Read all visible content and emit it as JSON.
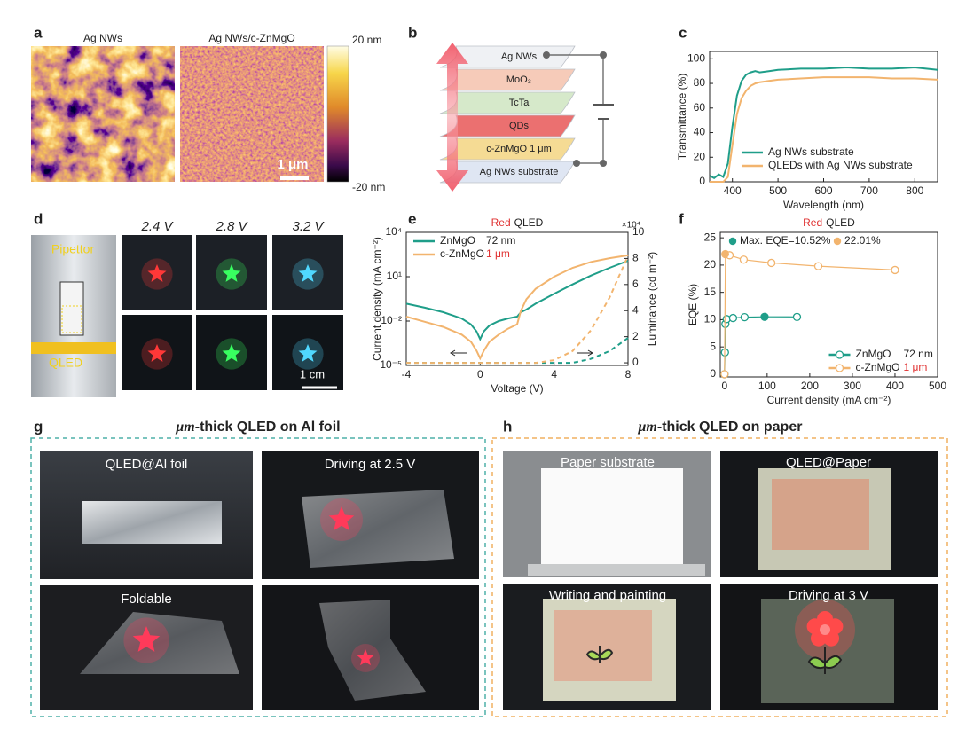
{
  "panels": {
    "a": {
      "label": "a",
      "titles": [
        "Ag NWs",
        "Ag NWs/c-ZnMgO"
      ],
      "colorbar": [
        "20 nm",
        "-20 nm"
      ],
      "scale_bar": "1 μm"
    },
    "b": {
      "label": "b",
      "layers": [
        "Ag NWs",
        "MoO₃",
        "TcTa",
        "QDs",
        "c-ZnMgO 1 μm",
        "Ag NWs substrate"
      ]
    },
    "c": {
      "label": "c"
    },
    "d": {
      "label": "d",
      "voltages": [
        "2.4 V",
        "2.8 V",
        "3.2 V"
      ],
      "pipettor": "Pipettor",
      "device": "QLED",
      "scale_bar": "1 cm"
    },
    "e": {
      "label": "e"
    },
    "f": {
      "label": "f"
    },
    "g": {
      "label": "g",
      "title_em": "μm",
      "title": "-thick QLED on Al foil",
      "captions": [
        "QLED@Al foil",
        "Driving at 2.5 V",
        "Foldable"
      ]
    },
    "h": {
      "label": "h",
      "title_em": "μm",
      "title": "-thick QLED on paper",
      "captions": [
        "Paper substrate",
        "QLED@Paper",
        "Writing and painting",
        "Driving at 3 V"
      ]
    }
  },
  "chart_data": [
    {
      "type": "line",
      "xlabel": "Wavelength (nm)",
      "ylabel": "Transmittance (%)",
      "x": [
        350,
        360,
        370,
        380,
        390,
        400,
        410,
        420,
        430,
        440,
        450,
        460,
        480,
        500,
        550,
        600,
        650,
        700,
        750,
        800,
        850
      ],
      "xlim": [
        350,
        850
      ],
      "xticks": [
        400,
        500,
        600,
        700,
        800
      ],
      "ylim": [
        0,
        106
      ],
      "yticks": [
        0,
        20,
        40,
        60,
        80,
        100
      ],
      "legend": "lower right",
      "series": [
        {
          "name": "Ag NWs substrate",
          "color": "#1f9e89",
          "values": [
            5,
            3,
            6,
            4,
            15,
            45,
            70,
            82,
            87,
            89,
            90,
            89,
            90,
            91,
            92,
            92,
            93,
            92,
            92,
            93,
            91
          ]
        },
        {
          "name": "QLEDs with Ag NWs substrate",
          "color": "#f2b46e",
          "values": [
            0,
            0,
            0,
            0,
            4,
            30,
            55,
            68,
            74,
            78,
            80,
            81,
            82,
            83,
            84,
            85,
            85,
            85,
            84,
            84,
            83
          ]
        }
      ]
    },
    {
      "type": "line",
      "title_prefix": "Red",
      "title_prefix_color": "#e03030",
      "title": "QLED",
      "xlabel": "Voltage (V)",
      "ylabel": "Current density (mA cm⁻²)",
      "y2label": "Luminance (cd m⁻²)",
      "y2_multiplier": "×10⁴",
      "x": [
        -4,
        -3,
        -2,
        -1,
        -0.5,
        -0.2,
        0,
        0.2,
        0.5,
        1,
        1.5,
        2,
        2.2,
        2.5,
        3,
        4,
        5,
        6,
        7,
        8
      ],
      "xlim": [
        -4,
        8
      ],
      "xticks": [
        -4,
        0,
        4,
        8
      ],
      "ylog": true,
      "ylim": [
        1e-05,
        10000
      ],
      "yticks": [
        {
          "value": 1e-05,
          "label": "10⁻⁵"
        },
        {
          "value": 0.01,
          "label": "10⁻²"
        },
        {
          "value": 10,
          "label": "10¹"
        },
        {
          "value": 10000,
          "label": "10⁴"
        }
      ],
      "y2lim": [
        -0.2,
        10
      ],
      "y2ticks": [
        0,
        2,
        4,
        6,
        8,
        10
      ],
      "legend": "upper left",
      "series": [
        {
          "name": "ZnMgO",
          "note": "72 nm",
          "color": "#1f9e89",
          "values": [
            0.15,
            0.08,
            0.04,
            0.015,
            0.006,
            0.002,
            0.0006,
            0.002,
            0.005,
            0.01,
            0.015,
            0.02,
            0.04,
            0.06,
            0.15,
            0.7,
            3,
            12,
            40,
            120
          ]
        },
        {
          "name": "c-ZnMgO",
          "note": "1 μm",
          "note_color": "#e03030",
          "color": "#f2b46e",
          "values": [
            0.02,
            0.009,
            0.004,
            0.0012,
            0.0004,
            0.0001,
            3e-05,
            0.0001,
            0.0004,
            0.0012,
            0.003,
            0.006,
            0.05,
            0.3,
            1.5,
            10,
            40,
            100,
            180,
            280
          ]
        },
        {
          "color": "#1f9e89",
          "axis": "y2",
          "dashed": true,
          "values": [
            0,
            0,
            0,
            0,
            0,
            0,
            0,
            0,
            0,
            0,
            0,
            0,
            0,
            0,
            0,
            0,
            0,
            0.3,
            0.9,
            1.9
          ]
        },
        {
          "color": "#f2b46e",
          "axis": "y2",
          "dashed": true,
          "values": [
            0,
            0,
            0,
            0,
            0,
            0,
            0,
            0,
            0,
            0,
            0,
            0,
            0,
            0,
            0,
            0.2,
            0.9,
            2.5,
            5,
            8.2
          ]
        }
      ]
    },
    {
      "type": "line",
      "markers": "open",
      "title_prefix": "Red",
      "title_prefix_color": "#e03030",
      "title": "QLED",
      "xlabel": "Current density (mA cm⁻²)",
      "ylabel": "EQE (%)",
      "xlim": [
        -10,
        500
      ],
      "xticks": [
        0,
        100,
        200,
        300,
        400,
        500
      ],
      "ylim": [
        -0.5,
        26
      ],
      "yticks": [
        0,
        5,
        10,
        15,
        20,
        25
      ],
      "legend": "lower right",
      "series": [
        {
          "name": "ZnMgO",
          "note": "72 nm",
          "color": "#1f9e89",
          "x": [
            0,
            1,
            2,
            5,
            20,
            47,
            94,
            170
          ],
          "values": [
            0,
            4,
            9.2,
            10.1,
            10.3,
            10.45,
            10.52,
            10.5
          ]
        },
        {
          "name": "c-ZnMgO",
          "note": "1 μm",
          "note_color": "#e03030",
          "color": "#f2b46e",
          "x": [
            0,
            2,
            12,
            45,
            110,
            220,
            400
          ],
          "values": [
            0,
            22.01,
            21.8,
            21.0,
            20.4,
            19.8,
            19.1
          ]
        }
      ],
      "highlights": [
        {
          "label": "Max. EQE=10.52%",
          "color": "#1f9e89",
          "x": 94,
          "value": 10.52
        },
        {
          "label": "22.01%",
          "color": "#f2b46e",
          "x": 2,
          "value": 22.01
        }
      ]
    }
  ]
}
